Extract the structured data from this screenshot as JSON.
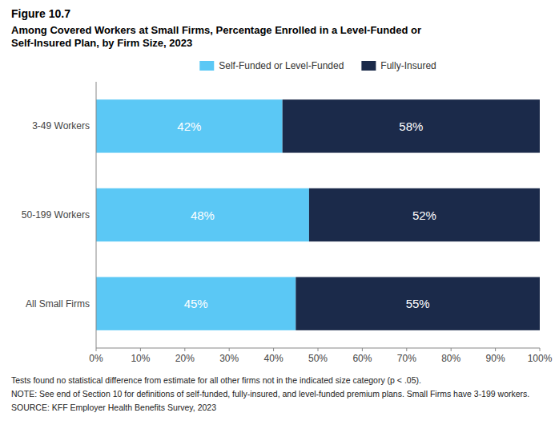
{
  "chart_data": {
    "type": "bar",
    "orientation": "horizontal",
    "stacked": true,
    "title": "Figure 10.7",
    "subtitle": "Among Covered Workers at Small Firms, Percentage Enrolled in a Level-Funded or\nSelf-Insured Plan, by Firm Size, 2023",
    "categories": [
      "3-49 Workers",
      "50-199 Workers",
      "All Small Firms"
    ],
    "series": [
      {
        "name": "Self-Funded or Level-Funded",
        "color": "#5BC8F5",
        "values": [
          42,
          48,
          45
        ],
        "value_labels": [
          "42%",
          "48%",
          "45%"
        ]
      },
      {
        "name": "Fully-Insured",
        "color": "#1B2A4A",
        "values": [
          58,
          52,
          55
        ],
        "value_labels": [
          "58%",
          "52%",
          "55%"
        ]
      }
    ],
    "xlim": [
      0,
      100
    ],
    "xticks": [
      {
        "value": 0,
        "label": "0%"
      },
      {
        "value": 10,
        "label": "10%"
      },
      {
        "value": 20,
        "label": "20%"
      },
      {
        "value": 30,
        "label": "30%"
      },
      {
        "value": 40,
        "label": "40%"
      },
      {
        "value": 50,
        "label": "50%"
      },
      {
        "value": 60,
        "label": "60%"
      },
      {
        "value": 70,
        "label": "70%"
      },
      {
        "value": 80,
        "label": "80%"
      },
      {
        "value": 90,
        "label": "90%"
      },
      {
        "value": 100,
        "label": "100%"
      }
    ],
    "grid": false,
    "legend": "top",
    "data_labels": true,
    "annotations": [
      "Tests found no statistical difference from estimate for all other firms not in the indicated size category (p < .05).",
      "NOTE: See end of Section 10 for definitions of self-funded, fully-insured, and level-funded premium plans. Small Firms have 3-199 workers.",
      "SOURCE: KFF Employer Health Benefits Survey, 2023"
    ]
  }
}
